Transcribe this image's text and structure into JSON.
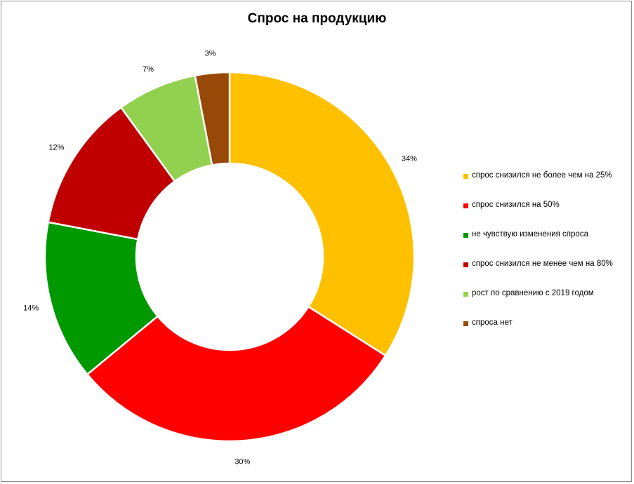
{
  "chart_data": {
    "type": "pie",
    "style": "donut",
    "title": "Спрос на продукцию",
    "legend_position": "right",
    "slices": [
      {
        "label": "спрос снизился не более чем на 25%",
        "value": 34,
        "display": "34%",
        "color": "#FFC000"
      },
      {
        "label": "спрос снизился на 50%",
        "value": 30,
        "display": "30%",
        "color": "#FF0000"
      },
      {
        "label": "не чувствую изменения спроса",
        "value": 14,
        "display": "14%",
        "color": "#009900"
      },
      {
        "label": "спрос снизился не менее чем на 80%",
        "value": 12,
        "display": "12%",
        "color": "#C00000"
      },
      {
        "label": "рост по сравнению с 2019 годом",
        "value": 7,
        "display": "7%",
        "color": "#92D050"
      },
      {
        "label": "спроса нет",
        "value": 3,
        "display": "3%",
        "color": "#984807"
      }
    ]
  }
}
